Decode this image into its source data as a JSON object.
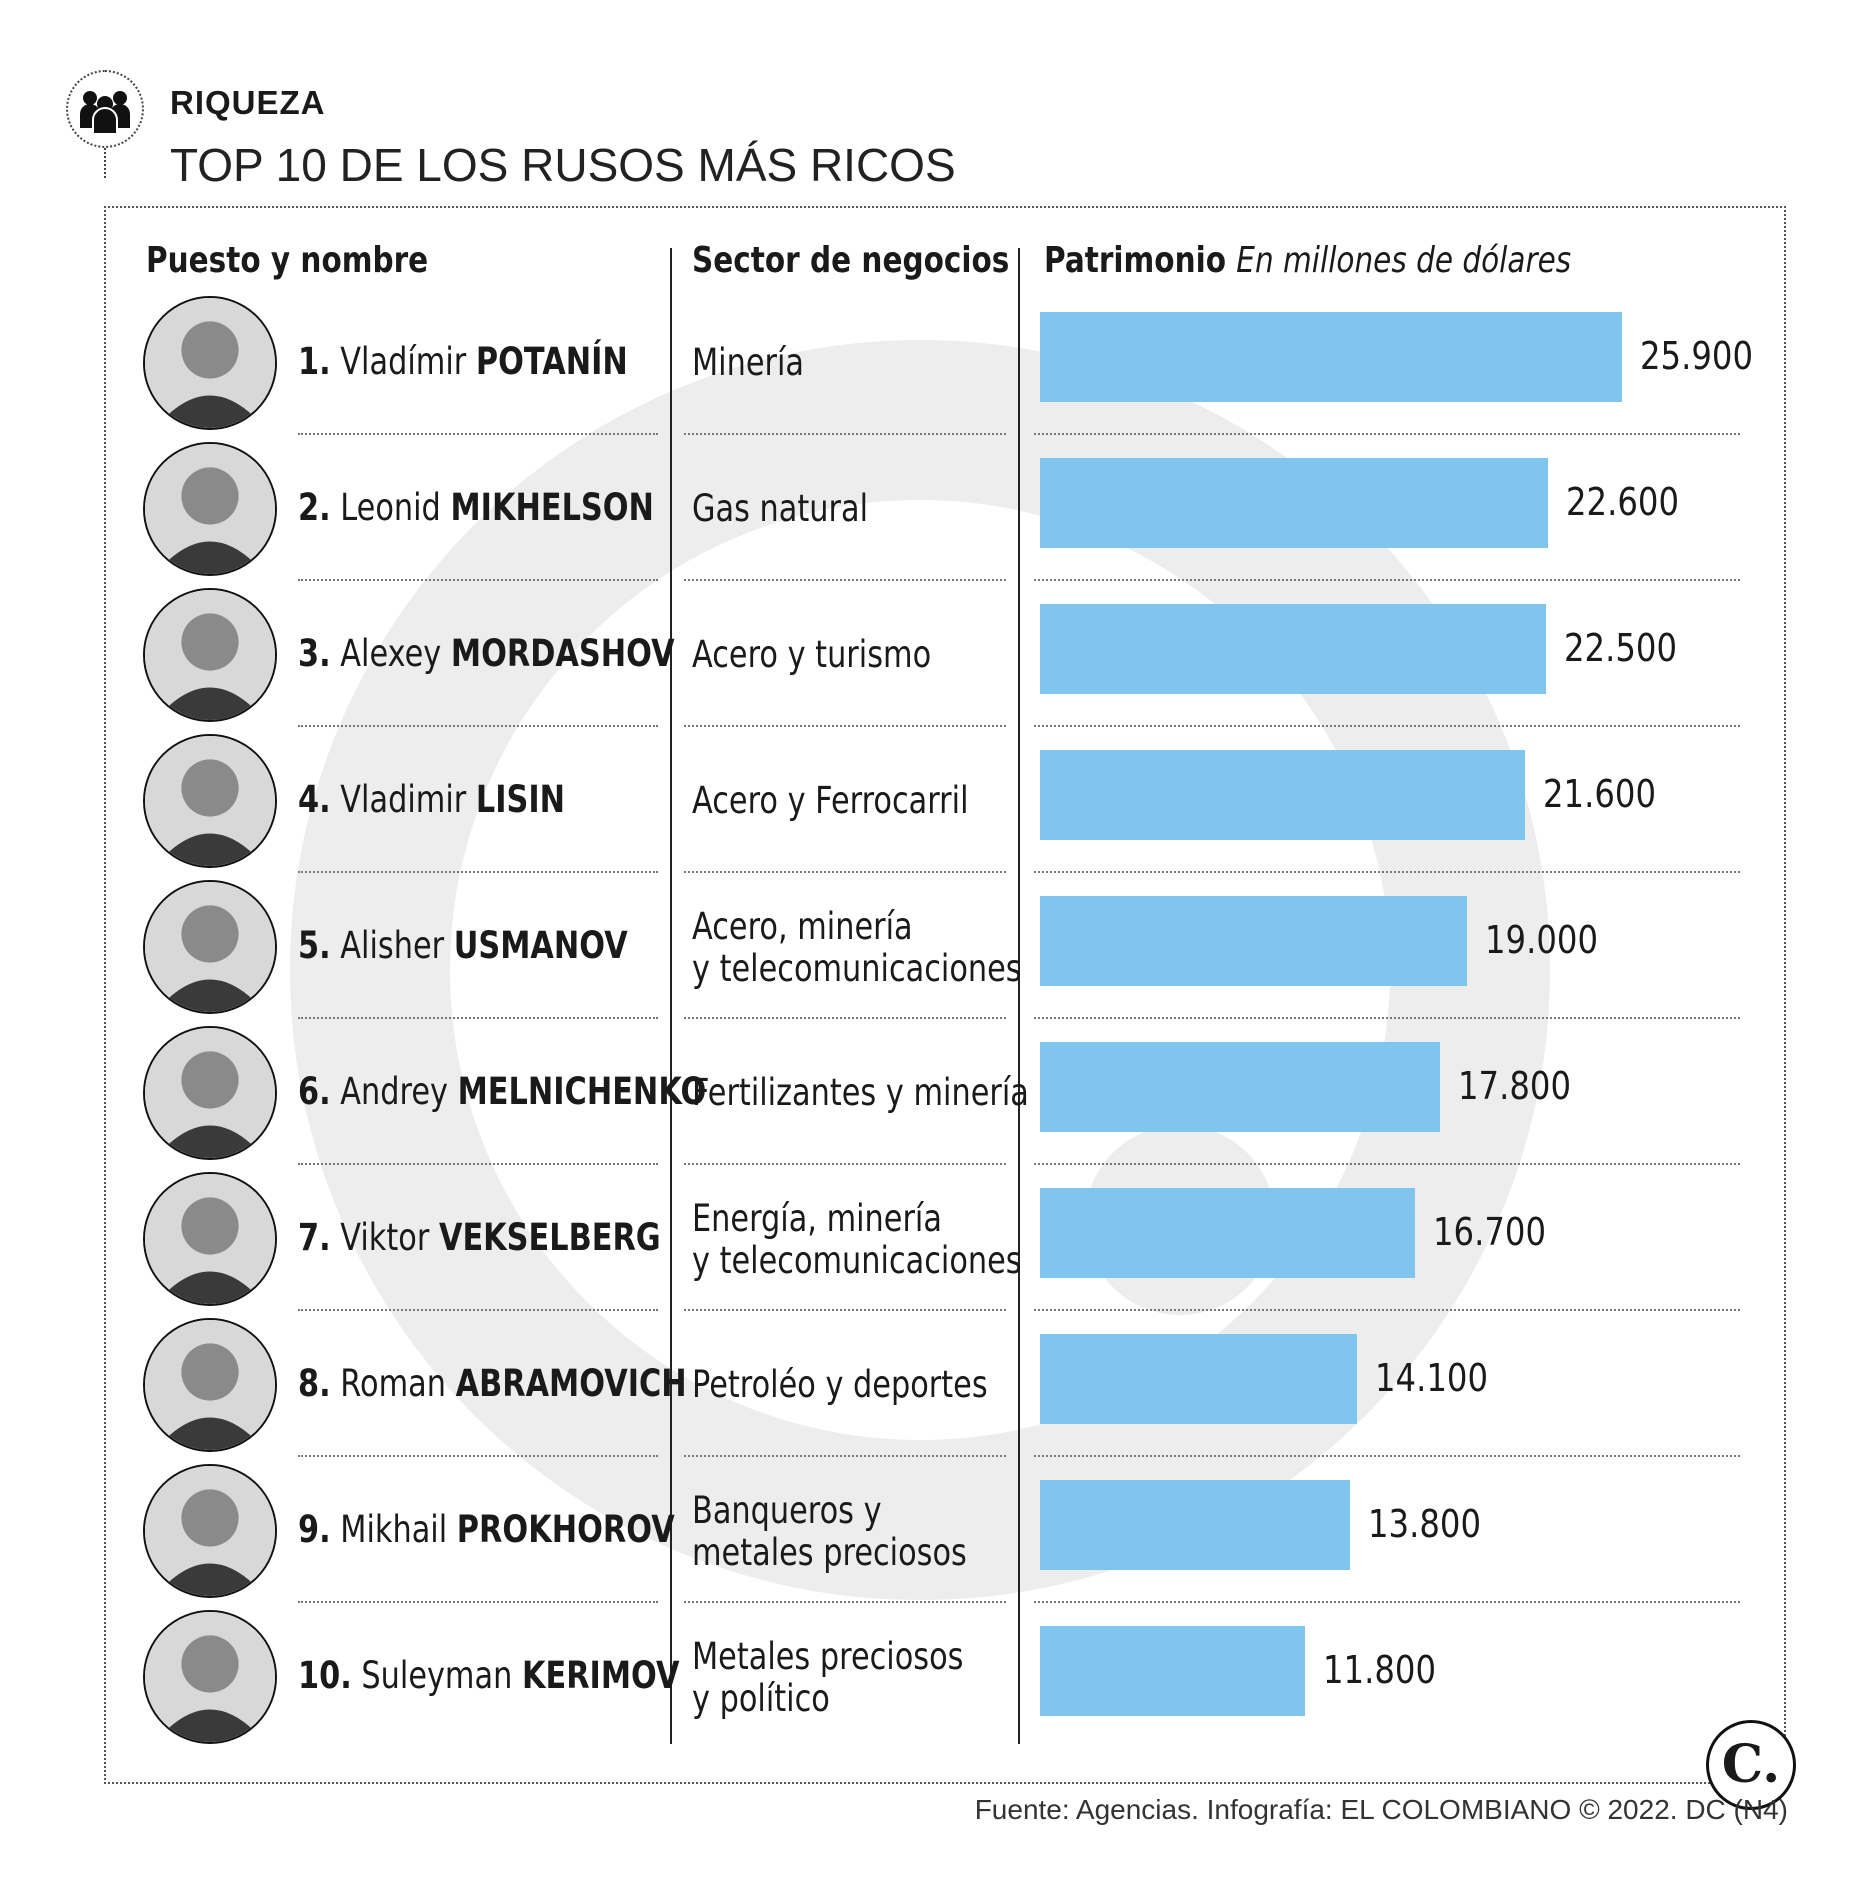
{
  "header": {
    "icon": "people-group-icon",
    "section": "RIQUEZA",
    "title": "TOP 10 DE LOS RUSOS MÁS RICOS"
  },
  "columns": {
    "name": "Puesto y nombre",
    "sector": "Sector de negocios",
    "wealth": "Patrimonio",
    "wealth_unit": "En millones de dólares"
  },
  "chart_data": {
    "type": "bar",
    "orientation": "horizontal",
    "title": "TOP 10 DE LOS RUSOS MÁS RICOS",
    "value_label": "Patrimonio",
    "unit": "En millones de dólares",
    "xlim": [
      0,
      25900
    ],
    "grid": false,
    "bar_color": "#7fc5ee",
    "rows": [
      {
        "rank": "1.",
        "first": "Vladímir",
        "last": "POTANÍN",
        "sector": [
          "Minería"
        ],
        "value": 25900,
        "label": "25.900"
      },
      {
        "rank": "2.",
        "first": "Leonid",
        "last": "MIKHELSON",
        "sector": [
          "Gas natural"
        ],
        "value": 22600,
        "label": "22.600"
      },
      {
        "rank": "3.",
        "first": "Alexey",
        "last": "MORDASHOV",
        "sector": [
          "Acero y turismo"
        ],
        "value": 22500,
        "label": "22.500"
      },
      {
        "rank": "4.",
        "first": "Vladimir",
        "last": "LISIN",
        "sector": [
          "Acero y Ferrocarril"
        ],
        "value": 21600,
        "label": "21.600"
      },
      {
        "rank": "5.",
        "first": "Alisher",
        "last": "USMANOV",
        "sector": [
          "Acero, minería",
          "y telecomunicaciones"
        ],
        "value": 19000,
        "label": "19.000"
      },
      {
        "rank": "6.",
        "first": "Andrey",
        "last": "MELNICHENKO",
        "sector": [
          "Fertilizantes y minería"
        ],
        "value": 17800,
        "label": "17.800"
      },
      {
        "rank": "7.",
        "first": "Viktor",
        "last": "VEKSELBERG",
        "sector": [
          "Energía, minería",
          "y telecomunicaciones"
        ],
        "value": 16700,
        "label": "16.700"
      },
      {
        "rank": "8.",
        "first": "Roman",
        "last": "ABRAMOVICH",
        "sector": [
          "Petroléo y deportes"
        ],
        "value": 14100,
        "label": "14.100"
      },
      {
        "rank": "9.",
        "first": "Mikhail",
        "last": "PROKHOROV",
        "sector": [
          "Banqueros y",
          "metales preciosos"
        ],
        "value": 13800,
        "label": "13.800"
      },
      {
        "rank": "10.",
        "first": "Suleyman",
        "last": "KERIMOV",
        "sector": [
          "Metales preciosos",
          "y político"
        ],
        "value": 11800,
        "label": "11.800"
      }
    ]
  },
  "footer": {
    "source": "Fuente: Agencias. Infografía: EL COLOMBIANO © 2022. DC (N4)",
    "logo_text": "C."
  }
}
